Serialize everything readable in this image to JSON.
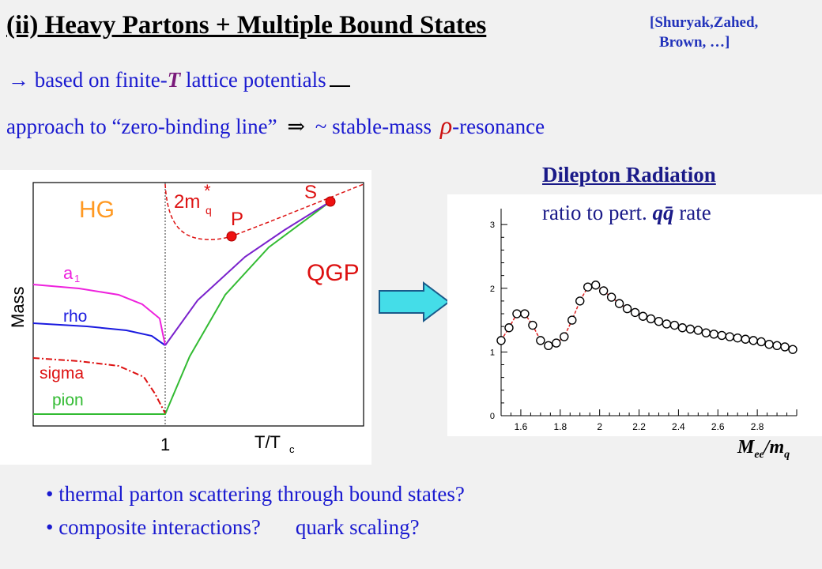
{
  "title": "(ii) Heavy Partons + Multiple Bound States",
  "citation": {
    "line1": "[Shuryak,Zahed,",
    "line2": "Brown, …]"
  },
  "line1": {
    "prefix": "→ based on finite-",
    "symbol": "T",
    "suffix": " lattice potentials"
  },
  "line2": {
    "text": "approach to “zero-binding line”",
    "implies": "⇒",
    "rest": " ~ stable-mass ",
    "rho": "ρ",
    "tail": "-resonance"
  },
  "mass_diagram": {
    "ylabel": "Mass",
    "xlabel_main": "T/T",
    "xlabel_sub": "c",
    "x_tick": "1",
    "regions": {
      "hg": "HG",
      "qgp": "QGP"
    },
    "labels": {
      "mq": "2m",
      "mq_sup": "*",
      "mq_sub": "q",
      "p": "P",
      "s": "S",
      "a1": "a",
      "a1_sub": "1",
      "rho": "rho",
      "sigma": "sigma",
      "pion": "pion"
    },
    "colors": {
      "a1": "#ee22dd",
      "rho": "#1a1adf",
      "sigma": "#dd1111",
      "pion": "#33bb33",
      "qgp_line": "#7a22cc",
      "mq": "#dd1111",
      "hg": "#ff9922"
    }
  },
  "dilepton": {
    "title": "Dilepton Radiation",
    "subtitle_prefix": "ratio to pert. ",
    "subtitle_q": "qq̄",
    "subtitle_suffix": " rate",
    "xaxis_main": "M",
    "xaxis_sub1": "ee",
    "xaxis_mid": "/m",
    "xaxis_sub2": "q"
  },
  "chart_data": {
    "type": "line",
    "x": [
      1.5,
      1.54,
      1.58,
      1.62,
      1.66,
      1.7,
      1.74,
      1.78,
      1.82,
      1.86,
      1.9,
      1.94,
      1.98,
      2.02,
      2.06,
      2.1,
      2.14,
      2.18,
      2.22,
      2.26,
      2.3,
      2.34,
      2.38,
      2.42,
      2.46,
      2.5,
      2.54,
      2.58,
      2.62,
      2.66,
      2.7,
      2.74,
      2.78,
      2.82,
      2.86,
      2.9,
      2.94,
      2.98
    ],
    "y": [
      1.18,
      1.38,
      1.6,
      1.6,
      1.42,
      1.18,
      1.1,
      1.14,
      1.24,
      1.5,
      1.8,
      2.02,
      2.05,
      1.96,
      1.86,
      1.76,
      1.68,
      1.62,
      1.56,
      1.52,
      1.48,
      1.44,
      1.42,
      1.38,
      1.36,
      1.34,
      1.3,
      1.28,
      1.26,
      1.24,
      1.22,
      1.2,
      1.18,
      1.16,
      1.12,
      1.1,
      1.08,
      1.04
    ],
    "xlim": [
      1.5,
      3.0
    ],
    "ylim": [
      0,
      3.25
    ],
    "x_ticks": [
      "1.6",
      "1.8",
      "2",
      "2.2",
      "2.4",
      "2.6",
      "2.8"
    ],
    "y_ticks": [
      "0",
      "1",
      "2",
      "3"
    ],
    "series_color": "#dd2222"
  },
  "bullets": [
    {
      "text": "thermal parton scattering through bound states?"
    },
    {
      "text": "composite interactions?",
      "text2": "quark scaling?"
    }
  ]
}
